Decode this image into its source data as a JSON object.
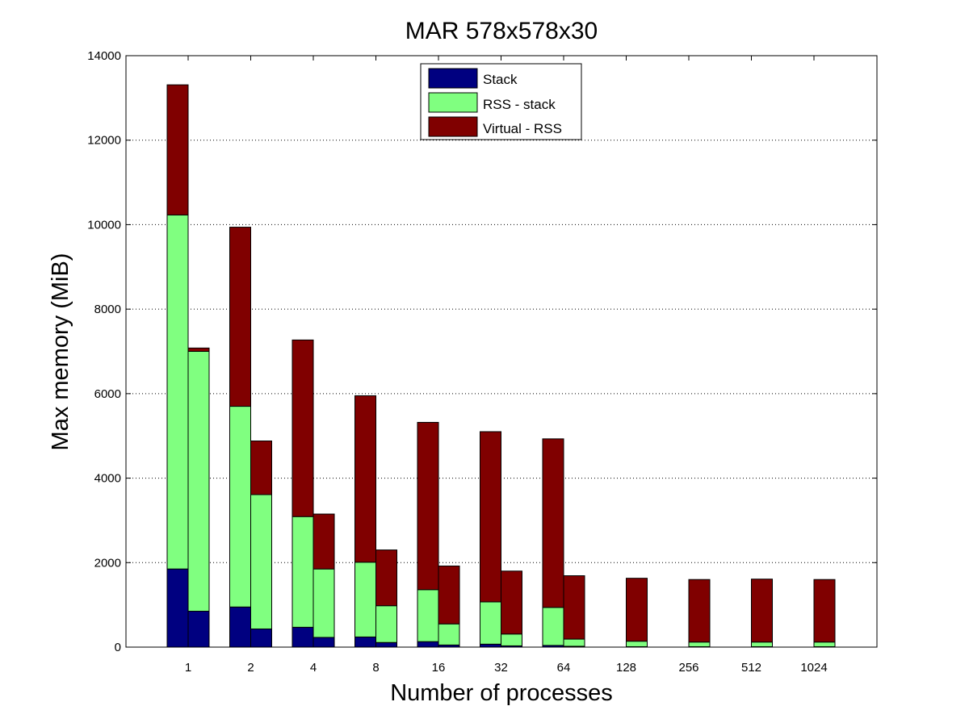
{
  "chart_data": {
    "type": "bar",
    "title": "MAR 578x578x30",
    "xlabel": "Number of processes",
    "ylabel": "Max memory (MiB)",
    "ylim": [
      0,
      14000
    ],
    "yticks": [
      0,
      2000,
      4000,
      6000,
      8000,
      10000,
      12000,
      14000
    ],
    "grid": "y-dotted",
    "legend_position": "top-center",
    "categories": [
      "1",
      "2",
      "4",
      "8",
      "16",
      "32",
      "64",
      "128",
      "256",
      "512",
      "1024"
    ],
    "stack_order": [
      "Stack",
      "RSS - stack",
      "Virtual - RSS"
    ],
    "series_colors": {
      "Stack": "#000080",
      "RSS - stack": "#80ff80",
      "Virtual - RSS": "#800000"
    },
    "bars": [
      {
        "category": "1",
        "slot": 0,
        "values": [
          1850,
          8380,
          3080
        ]
      },
      {
        "category": "1",
        "slot": 1,
        "values": [
          850,
          6150,
          80
        ]
      },
      {
        "category": "2",
        "slot": 0,
        "values": [
          950,
          4750,
          4240
        ]
      },
      {
        "category": "2",
        "slot": 1,
        "values": [
          430,
          3180,
          1270
        ]
      },
      {
        "category": "4",
        "slot": 0,
        "values": [
          470,
          2620,
          4180
        ]
      },
      {
        "category": "4",
        "slot": 1,
        "values": [
          230,
          1620,
          1300
        ]
      },
      {
        "category": "8",
        "slot": 0,
        "values": [
          240,
          1770,
          3940
        ]
      },
      {
        "category": "8",
        "slot": 1,
        "values": [
          110,
          870,
          1320
        ]
      },
      {
        "category": "16",
        "slot": 0,
        "values": [
          130,
          1230,
          3960
        ]
      },
      {
        "category": "16",
        "slot": 1,
        "values": [
          50,
          500,
          1370
        ]
      },
      {
        "category": "32",
        "slot": 0,
        "values": [
          70,
          1000,
          4030
        ]
      },
      {
        "category": "32",
        "slot": 1,
        "values": [
          30,
          280,
          1490
        ]
      },
      {
        "category": "64",
        "slot": 0,
        "values": [
          40,
          900,
          3990
        ]
      },
      {
        "category": "64",
        "slot": 1,
        "values": [
          20,
          170,
          1500
        ]
      },
      {
        "category": "128",
        "slot": 1,
        "values": [
          10,
          130,
          1490
        ]
      },
      {
        "category": "256",
        "slot": 1,
        "values": [
          10,
          110,
          1480
        ]
      },
      {
        "category": "512",
        "slot": 1,
        "values": [
          10,
          110,
          1490
        ]
      },
      {
        "category": "1024",
        "slot": 1,
        "values": [
          10,
          110,
          1480
        ]
      }
    ]
  }
}
